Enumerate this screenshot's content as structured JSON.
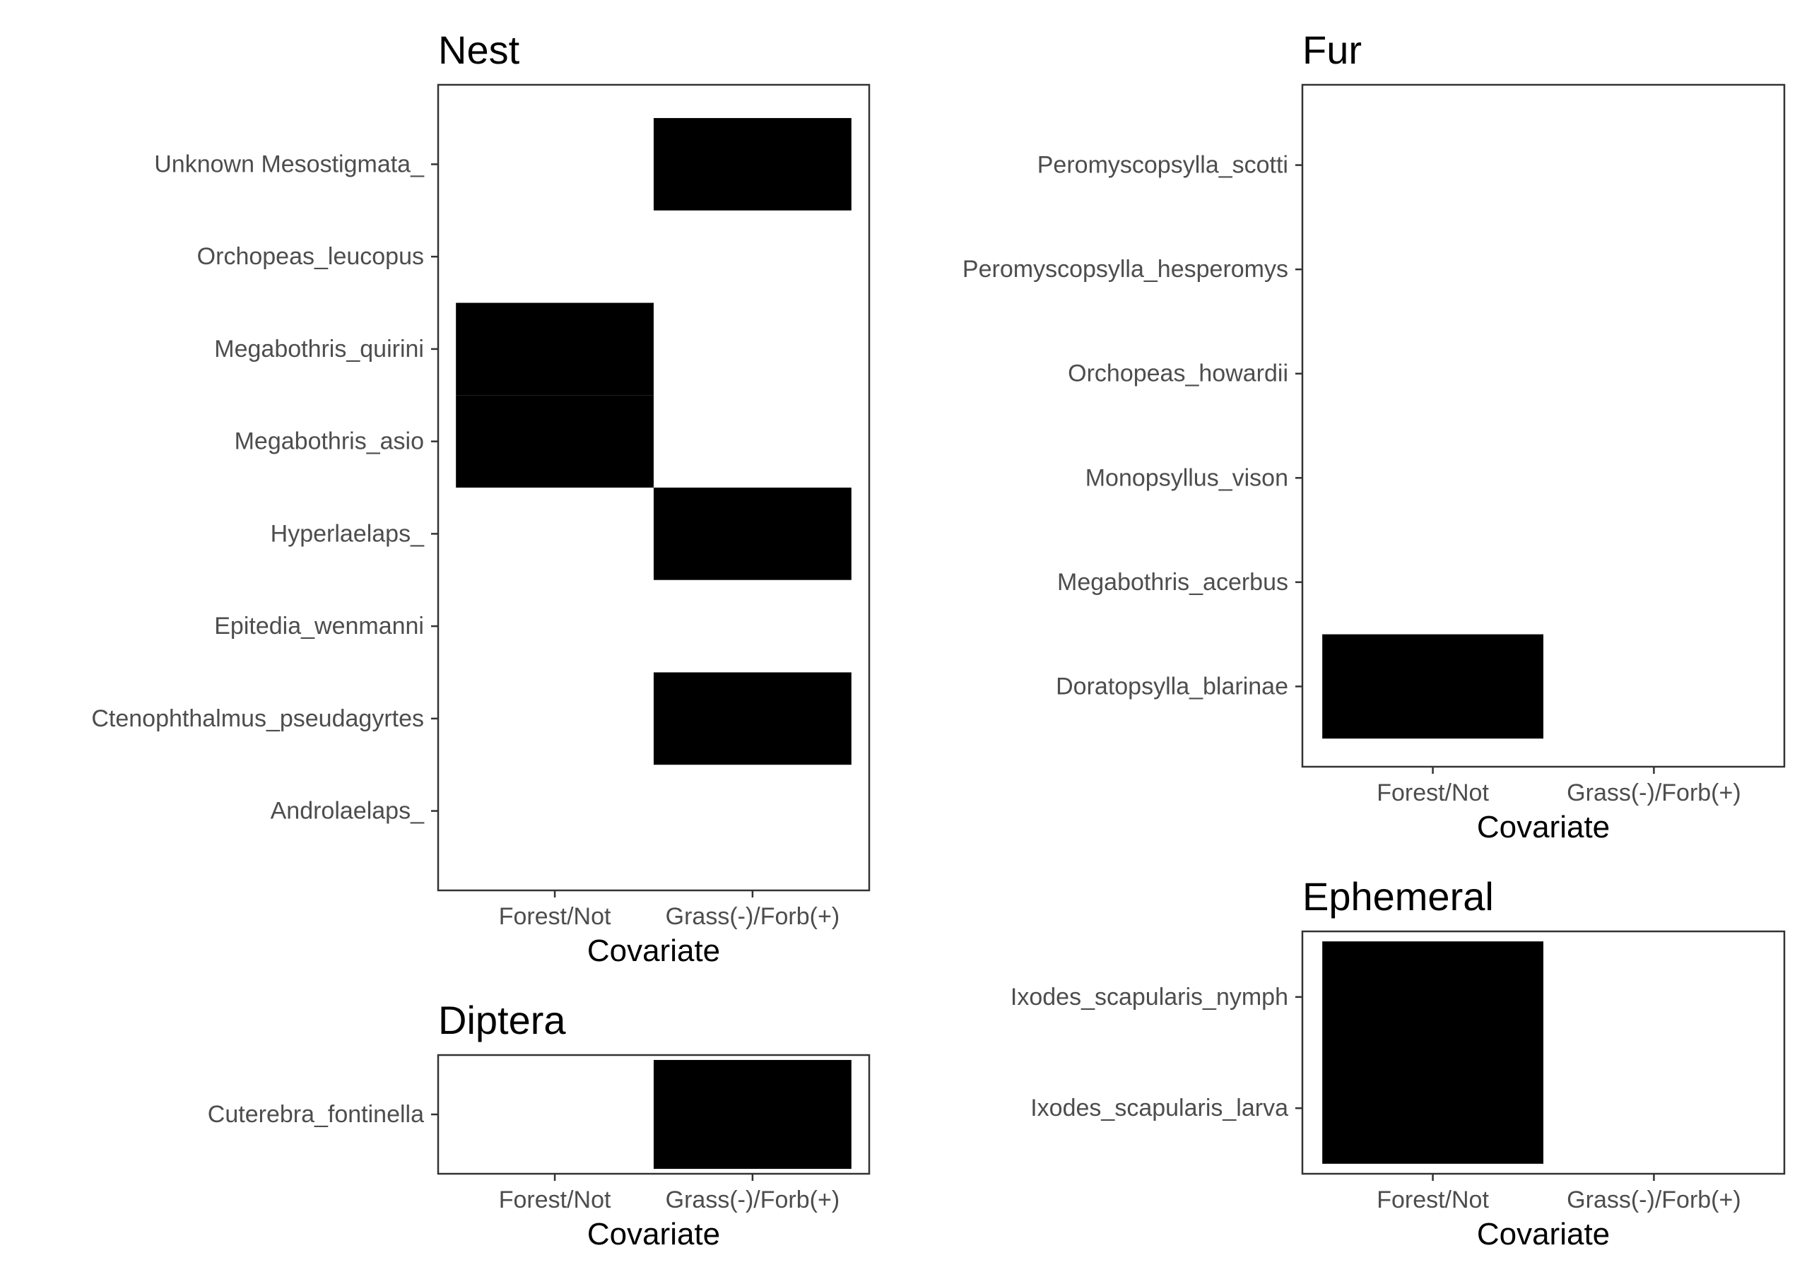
{
  "chart_data": [
    {
      "type": "heatmap",
      "title": "Nest",
      "xlabel": "Covariate",
      "categories": [
        "Forest/Not",
        "Grass(-)/Forb(+)"
      ],
      "rows": [
        "Unknown Mesostigmata_",
        "Orchopeas_leucopus",
        "Megabothris_quirini",
        "Megabothris_asio",
        "Hyperlaelaps_",
        "Epitedia_wenmanni",
        "Ctenophthalmus_pseudagyrtes",
        "Androlaelaps_"
      ],
      "cells": [
        {
          "row": "Unknown Mesostigmata_",
          "col": "Grass(-)/Forb(+)"
        },
        {
          "row": "Megabothris_quirini",
          "col": "Forest/Not"
        },
        {
          "row": "Megabothris_asio",
          "col": "Forest/Not"
        },
        {
          "row": "Hyperlaelaps_",
          "col": "Grass(-)/Forb(+)"
        },
        {
          "row": "Ctenophthalmus_pseudagyrtes",
          "col": "Grass(-)/Forb(+)"
        }
      ],
      "fill": "#000000",
      "grid": false,
      "legend": "none"
    },
    {
      "type": "heatmap",
      "title": "Diptera",
      "xlabel": "Covariate",
      "categories": [
        "Forest/Not",
        "Grass(-)/Forb(+)"
      ],
      "rows": [
        "Cuterebra_fontinella"
      ],
      "cells": [
        {
          "row": "Cuterebra_fontinella",
          "col": "Grass(-)/Forb(+)"
        }
      ],
      "fill": "#000000",
      "grid": false,
      "legend": "none"
    },
    {
      "type": "heatmap",
      "title": "Fur",
      "xlabel": "Covariate",
      "categories": [
        "Forest/Not",
        "Grass(-)/Forb(+)"
      ],
      "rows": [
        "Peromyscopsylla_scotti",
        "Peromyscopsylla_hesperomys",
        "Orchopeas_howardii",
        "Monopsyllus_vison",
        "Megabothris_acerbus",
        "Doratopsylla_blarinae"
      ],
      "cells": [
        {
          "row": "Doratopsylla_blarinae",
          "col": "Forest/Not"
        }
      ],
      "fill": "#000000",
      "grid": false,
      "legend": "none"
    },
    {
      "type": "heatmap",
      "title": "Ephemeral",
      "xlabel": "Covariate",
      "categories": [
        "Forest/Not",
        "Grass(-)/Forb(+)"
      ],
      "rows": [
        "Ixodes_scapularis_nymph",
        "Ixodes_scapularis_larva"
      ],
      "cells": [
        {
          "row": "Ixodes_scapularis_nymph",
          "col": "Forest/Not"
        },
        {
          "row": "Ixodes_scapularis_larva",
          "col": "Forest/Not"
        }
      ],
      "fill": "#000000",
      "grid": false,
      "legend": "none"
    }
  ]
}
